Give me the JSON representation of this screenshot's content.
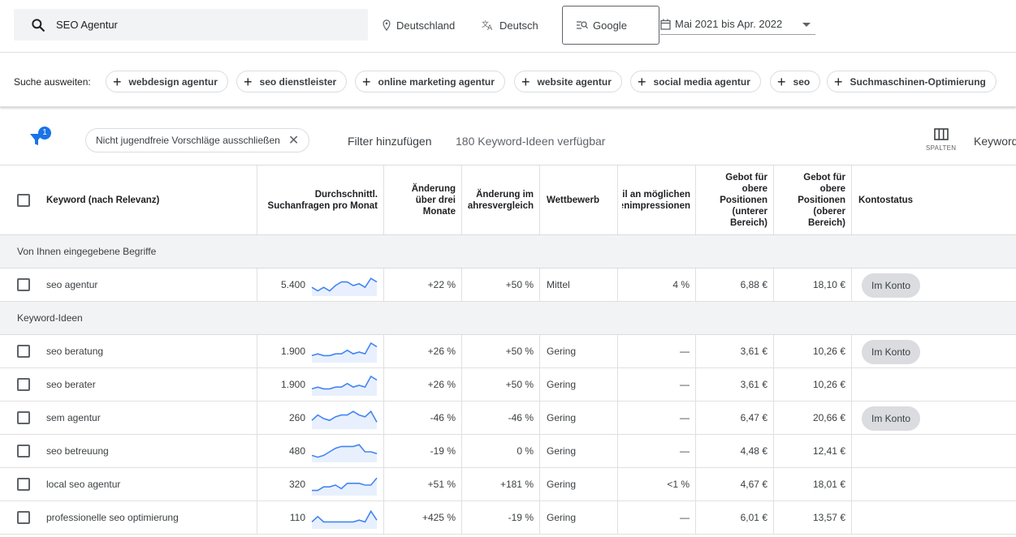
{
  "search": {
    "value": "SEO Agentur"
  },
  "location": "Deutschland",
  "language": "Deutsch",
  "engine": "Google",
  "date_range": "Mai 2021 bis Apr. 2022",
  "expand": {
    "label": "Suche ausweiten:",
    "chips": [
      "webdesign agentur",
      "seo dienstleister",
      "online marketing agentur",
      "website agentur",
      "social media agentur",
      "seo",
      "Suchmaschinen-Optimierung"
    ]
  },
  "filters": {
    "badge": "1",
    "adult_chip": "Nicht jugendfreie Vorschläge ausschließen",
    "add_filter": "Filter hinzufügen",
    "available": "180 Keyword-Ideen verfügbar",
    "columns_label": "SPALTEN",
    "keyword_view": "Keyword"
  },
  "table": {
    "headers": {
      "keyword": "Keyword (nach Relevanz)",
      "avg": "Durchschnittl. Suchanfragen pro Monat",
      "change3": "Änderung über drei Monate",
      "yoy": "Änderung im Jahresvergleich",
      "competition": "Wettbewerb",
      "share": "Anteil an möglichen Anzeigenimpressionen",
      "bid_low": "Gebot für obere Positionen (unterer Bereich)",
      "bid_high": "Gebot für obere Positionen (oberer Bereich)",
      "status": "Kontostatus"
    },
    "group_entered": "Von Ihnen eingegebene Begriffe",
    "group_ideas": "Keyword-Ideen",
    "entered_rows": [
      {
        "keyword": "seo agentur",
        "avg": "5.400",
        "change3": "+22 %",
        "yoy": "+50 %",
        "competition": "Mittel",
        "share": "4 %",
        "bid_low": "6,88 €",
        "bid_high": "18,10 €",
        "status": "Im Konto",
        "trend": [
          4,
          2,
          4,
          2,
          5,
          7,
          7,
          5,
          6,
          4,
          9,
          7
        ]
      }
    ],
    "idea_rows": [
      {
        "keyword": "seo beratung",
        "avg": "1.900",
        "change3": "+26 %",
        "yoy": "+50 %",
        "competition": "Gering",
        "share": "—",
        "bid_low": "3,61 €",
        "bid_high": "10,26 €",
        "status": "Im Konto",
        "trend": [
          3,
          4,
          3,
          3,
          4,
          4,
          6,
          4,
          5,
          4,
          10,
          8
        ]
      },
      {
        "keyword": "seo berater",
        "avg": "1.900",
        "change3": "+26 %",
        "yoy": "+50 %",
        "competition": "Gering",
        "share": "—",
        "bid_low": "3,61 €",
        "bid_high": "10,26 €",
        "status": "",
        "trend": [
          3,
          4,
          3,
          3,
          4,
          4,
          6,
          4,
          5,
          4,
          10,
          8
        ]
      },
      {
        "keyword": "sem agentur",
        "avg": "260",
        "change3": "-46 %",
        "yoy": "-46 %",
        "competition": "Gering",
        "share": "—",
        "bid_low": "6,47 €",
        "bid_high": "20,66 €",
        "status": "Im Konto",
        "trend": [
          4,
          7,
          5,
          4,
          6,
          7,
          7,
          9,
          7,
          6,
          9,
          3
        ]
      },
      {
        "keyword": "seo betreuung",
        "avg": "480",
        "change3": "-19 %",
        "yoy": "0 %",
        "competition": "Gering",
        "share": "—",
        "bid_low": "4,48 €",
        "bid_high": "12,41 €",
        "status": "",
        "trend": [
          3,
          2,
          3,
          5,
          7,
          8,
          8,
          8,
          9,
          5,
          5,
          4
        ]
      },
      {
        "keyword": "local seo agentur",
        "avg": "320",
        "change3": "+51 %",
        "yoy": "+181 %",
        "competition": "Gering",
        "share": "<1 %",
        "bid_low": "4,67 €",
        "bid_high": "18,01 €",
        "status": "",
        "trend": [
          2,
          2,
          4,
          4,
          5,
          3,
          6,
          6,
          6,
          5,
          5,
          9
        ]
      },
      {
        "keyword": "professionelle seo optimierung",
        "avg": "110",
        "change3": "+425 %",
        "yoy": "-19 %",
        "competition": "Gering",
        "share": "—",
        "bid_low": "6,01 €",
        "bid_high": "13,57 €",
        "status": "",
        "trend": [
          3,
          6,
          3,
          3,
          3,
          3,
          3,
          3,
          4,
          3,
          9,
          4
        ]
      }
    ]
  },
  "colors": {
    "accent": "#1a73e8",
    "spark_line": "#4285f4",
    "spark_fill": "#e8f0fe"
  }
}
